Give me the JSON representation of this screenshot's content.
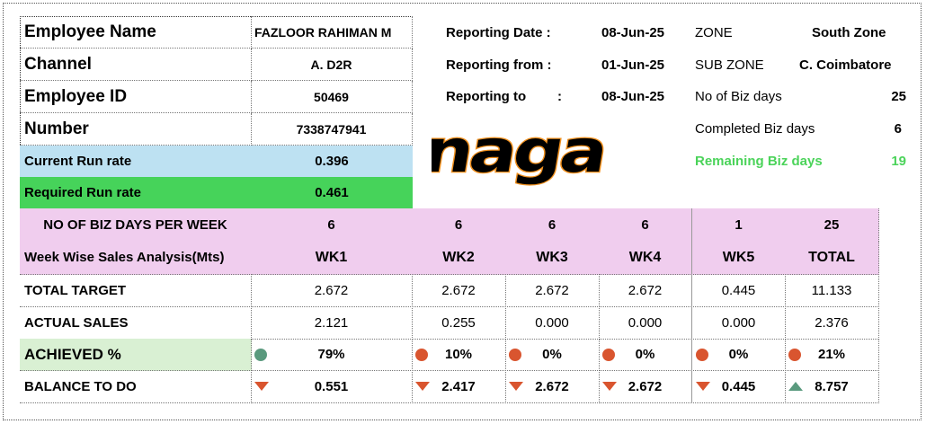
{
  "employee": {
    "name_label": "Employee Name",
    "name": "FAZLOOR RAHIMAN M",
    "channel_label": "Channel",
    "channel": "A. D2R",
    "id_label": "Employee ID",
    "id": "50469",
    "number_label": "Number",
    "number": "7338747941"
  },
  "run_rate": {
    "current_label": "Current Run rate",
    "current": "0.396",
    "required_label": "Required Run rate",
    "required": "0.461"
  },
  "reporting": {
    "date_label": "Reporting Date :",
    "date": "08-Jun-25",
    "from_label": "Reporting from :",
    "from": "01-Jun-25",
    "to_label": "Reporting to",
    "to_colon": ":",
    "to": "08-Jun-25"
  },
  "zone": {
    "zone_label": "ZONE",
    "zone": "South Zone",
    "sub_zone_label": "SUB ZONE",
    "sub_zone": "C. Coimbatore",
    "biz_days_label": "No of Biz days",
    "biz_days": "25",
    "completed_label": "Completed Biz days",
    "completed": "6",
    "remaining_label": "Remaining Biz days",
    "remaining": "19"
  },
  "logo_text": "naga",
  "colors": {
    "blue_row": "#bde1f2",
    "green_row": "#46d35a",
    "pink_header": "#f0cdee",
    "achieved_bg": "#d9f0d3",
    "remaining_text": "#4bd35a",
    "good": "#5a9a7e",
    "bad": "#d9552f"
  },
  "table": {
    "days_label": "NO OF BIZ DAYS PER WEEK",
    "days": [
      "6",
      "6",
      "6",
      "6",
      "1",
      "25"
    ],
    "header_label": "Week Wise Sales Analysis(Mts)",
    "headers": [
      "WK1",
      "WK2",
      "WK3",
      "WK4",
      "WK5",
      "TOTAL"
    ],
    "target_label": "TOTAL TARGET",
    "target": [
      "2.672",
      "2.672",
      "2.672",
      "2.672",
      "0.445",
      "11.133"
    ],
    "actual_label": "ACTUAL SALES",
    "actual": [
      "2.121",
      "0.255",
      "0.000",
      "0.000",
      "0.000",
      "2.376"
    ],
    "achieved_label": "ACHIEVED  %",
    "achieved": [
      "79%",
      "10%",
      "0%",
      "0%",
      "0%",
      "21%"
    ],
    "achieved_status": [
      "good",
      "bad",
      "bad",
      "bad",
      "bad",
      "bad"
    ],
    "balance_label": "BALANCE TO DO",
    "balance": [
      "0.551",
      "2.417",
      "2.672",
      "2.672",
      "0.445",
      "8.757"
    ],
    "balance_status": [
      "down",
      "down",
      "down",
      "down",
      "down",
      "up"
    ]
  }
}
